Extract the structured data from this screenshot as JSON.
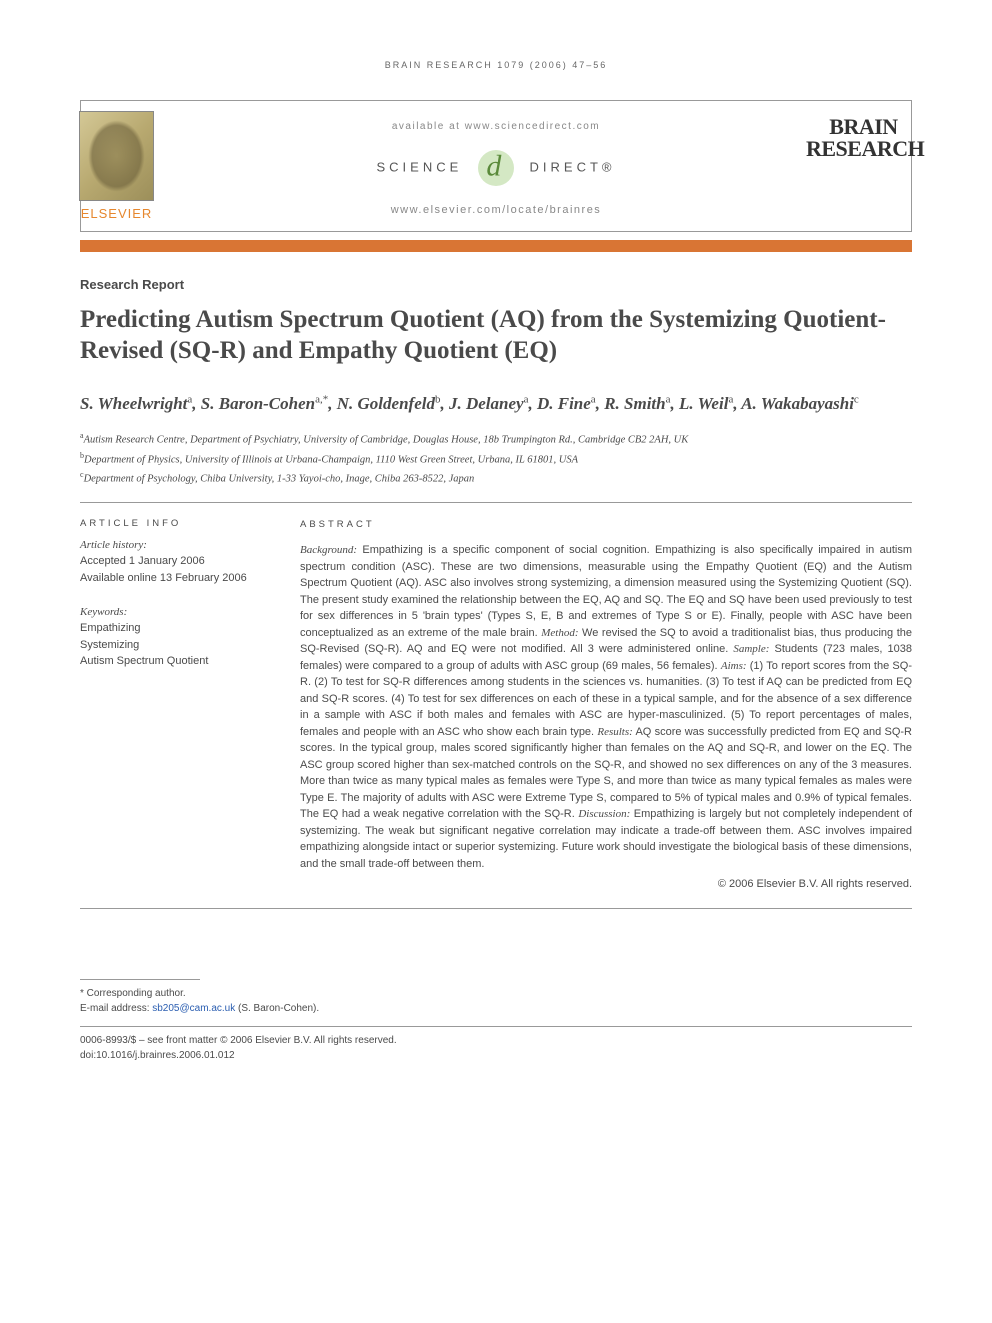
{
  "running_header": "BRAIN RESEARCH 1079 (2006) 47–56",
  "header": {
    "available": "available at www.sciencedirect.com",
    "science_direct_left": "SCIENCE",
    "science_direct_right": "DIRECT®",
    "locate_url": "www.elsevier.com/locate/brainres",
    "publisher": "ELSEVIER",
    "journal_line1": "BRAIN",
    "journal_line2": "RESEARCH"
  },
  "article_type": "Research Report",
  "title": "Predicting Autism Spectrum Quotient (AQ) from the Systemizing Quotient-Revised (SQ-R) and Empathy Quotient (EQ)",
  "authors_html": "S. Wheelwright<sup>a</sup>, S. Baron-Cohen<sup>a,*</sup>, N. Goldenfeld<sup>b</sup>, J. Delaney<sup>a</sup>, D. Fine<sup>a</sup>, R. Smith<sup>a</sup>, L. Weil<sup>a</sup>, A. Wakabayashi<sup>c</sup>",
  "affiliations": [
    "<sup>a</sup>Autism Research Centre, Department of Psychiatry, University of Cambridge, Douglas House, 18b Trumpington Rd., Cambridge CB2 2AH, UK",
    "<sup>b</sup>Department of Physics, University of Illinois at Urbana-Champaign, 1110 West Green Street, Urbana, IL 61801, USA",
    "<sup>c</sup>Department of Psychology, Chiba University, 1-33 Yayoi-cho, Inage, Chiba 263-8522, Japan"
  ],
  "article_info": {
    "heading": "ARTICLE INFO",
    "history_label": "Article history:",
    "accepted": "Accepted 1 January 2006",
    "online": "Available online 13 February 2006",
    "keywords_label": "Keywords:",
    "keywords": [
      "Empathizing",
      "Systemizing",
      "Autism Spectrum Quotient"
    ]
  },
  "abstract": {
    "heading": "ABSTRACT",
    "body_html": "<span class=\"em\">Background:</span> Empathizing is a specific component of social cognition. Empathizing is also specifically impaired in autism spectrum condition (ASC). These are two dimensions, measurable using the Empathy Quotient (EQ) and the Autism Spectrum Quotient (AQ). ASC also involves strong systemizing, a dimension measured using the Systemizing Quotient (SQ). The present study examined the relationship between the EQ, AQ and SQ. The EQ and SQ have been used previously to test for sex differences in 5 'brain types' (Types S, E, B and extremes of Type S or E). Finally, people with ASC have been conceptualized as an extreme of the male brain. <span class=\"em\">Method:</span> We revised the SQ to avoid a traditionalist bias, thus producing the SQ-Revised (SQ-R). AQ and EQ were not modified. All 3 were administered online. <span class=\"em\">Sample:</span> Students (723 males, 1038 females) were compared to a group of adults with ASC group (69 males, 56 females). <span class=\"em\">Aims:</span> (1) To report scores from the SQ-R. (2) To test for SQ-R differences among students in the sciences vs. humanities. (3) To test if AQ can be predicted from EQ and SQ-R scores. (4) To test for sex differences on each of these in a typical sample, and for the absence of a sex difference in a sample with ASC if both males and females with ASC are hyper-masculinized. (5) To report percentages of males, females and people with an ASC who show each brain type. <span class=\"em\">Results:</span> AQ score was successfully predicted from EQ and SQ-R scores. In the typical group, males scored significantly higher than females on the AQ and SQ-R, and lower on the EQ. The ASC group scored higher than sex-matched controls on the SQ-R, and showed no sex differences on any of the 3 measures. More than twice as many typical males as females were Type S, and more than twice as many typical females as males were Type E. The majority of adults with ASC were Extreme Type S, compared to 5% of typical males and 0.9% of typical females. The EQ had a weak negative correlation with the SQ-R. <span class=\"em\">Discussion:</span> Empathizing is largely but not completely independent of systemizing. The weak but significant negative correlation may indicate a trade-off between them. ASC involves impaired empathizing alongside intact or superior systemizing. Future work should investigate the biological basis of these dimensions, and the small trade-off between them.",
    "copyright": "© 2006 Elsevier B.V. All rights reserved."
  },
  "footnotes": {
    "corresponding": "* Corresponding author.",
    "email_label": "E-mail address: ",
    "email": "sb205@cam.ac.uk",
    "email_author": " (S. Baron-Cohen)."
  },
  "bottom": {
    "line1": "0006-8993/$ – see front matter © 2006 Elsevier B.V. All rights reserved.",
    "line2": "doi:10.1016/j.brainres.2006.01.012"
  }
}
